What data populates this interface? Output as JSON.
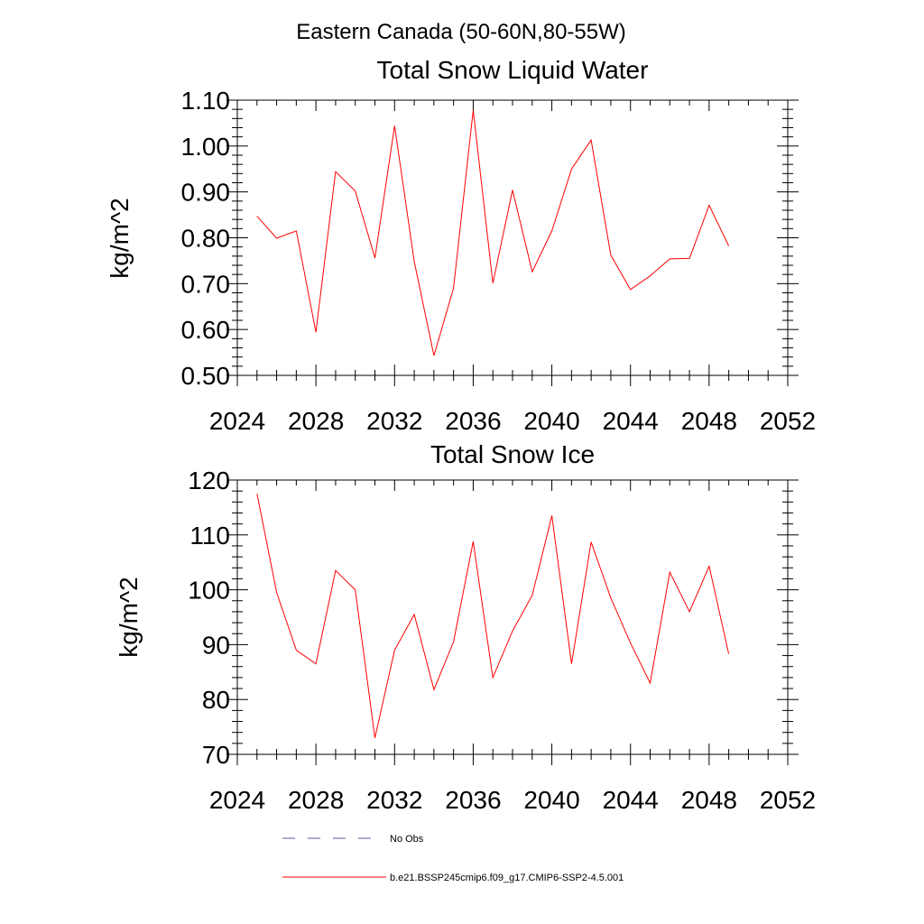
{
  "figure_title": "Eastern Canada (50-60N,80-55W)",
  "legend": {
    "entries": [
      {
        "label": "No Obs",
        "color": "#5a5aa0",
        "dash": "dashed"
      },
      {
        "label": "b.e21.BSSP245cmip6.f09_g17.CMIP6-SSP2-4.5.001",
        "color": "#ff0000",
        "dash": "solid"
      }
    ]
  },
  "colors": {
    "series": "#ff0000",
    "axes": "#000000",
    "background": "#ffffff"
  },
  "chart_data": [
    {
      "type": "line",
      "title": "Total Snow Liquid Water",
      "xlabel": "",
      "ylabel": "kg/m^2",
      "xlim": [
        2024,
        2052
      ],
      "ylim": [
        0.5,
        1.1
      ],
      "xticks": [
        2024,
        2028,
        2032,
        2036,
        2040,
        2044,
        2048,
        2052
      ],
      "xtick_labels": [
        "2024",
        "2028",
        "2032",
        "2036",
        "2040",
        "2044",
        "2048",
        "2052"
      ],
      "yticks": [
        0.5,
        0.6,
        0.7,
        0.8,
        0.9,
        1.0,
        1.1
      ],
      "ytick_labels": [
        "0.50",
        "0.60",
        "0.70",
        "0.80",
        "0.90",
        "1.00",
        "1.10"
      ],
      "x": [
        2025,
        2026,
        2027,
        2028,
        2029,
        2030,
        2031,
        2032,
        2033,
        2034,
        2035,
        2036,
        2037,
        2038,
        2039,
        2040,
        2041,
        2042,
        2043,
        2044,
        2045,
        2046,
        2047,
        2048,
        2049
      ],
      "series": [
        {
          "values": [
            0.847,
            0.799,
            0.815,
            0.594,
            0.944,
            0.902,
            0.756,
            1.044,
            0.748,
            0.543,
            0.69,
            1.078,
            0.701,
            0.904,
            0.726,
            0.815,
            0.95,
            1.013,
            0.762,
            0.687,
            0.717,
            0.754,
            0.755,
            0.871,
            0.782
          ]
        }
      ],
      "grid": false
    },
    {
      "type": "line",
      "title": "Total Snow Ice",
      "xlabel": "",
      "ylabel": "kg/m^2",
      "xlim": [
        2024,
        2052
      ],
      "ylim": [
        70,
        120
      ],
      "xticks": [
        2024,
        2028,
        2032,
        2036,
        2040,
        2044,
        2048,
        2052
      ],
      "xtick_labels": [
        "2024",
        "2028",
        "2032",
        "2036",
        "2040",
        "2044",
        "2048",
        "2052"
      ],
      "yticks": [
        70,
        80,
        90,
        100,
        110,
        120
      ],
      "ytick_labels": [
        "70",
        "80",
        "90",
        "100",
        "110",
        "120"
      ],
      "x": [
        2025,
        2026,
        2027,
        2028,
        2029,
        2030,
        2031,
        2032,
        2033,
        2034,
        2035,
        2036,
        2037,
        2038,
        2039,
        2040,
        2041,
        2042,
        2043,
        2044,
        2045,
        2046,
        2047,
        2048,
        2049
      ],
      "series": [
        {
          "values": [
            117.5,
            99.5,
            89.0,
            86.5,
            103.5,
            100.0,
            73.0,
            89.0,
            95.5,
            81.8,
            90.5,
            108.8,
            84.0,
            92.5,
            99.0,
            113.5,
            86.5,
            108.7,
            98.5,
            90.3,
            83.0,
            103.2,
            96.0,
            104.3,
            88.3
          ]
        }
      ],
      "grid": false
    }
  ]
}
